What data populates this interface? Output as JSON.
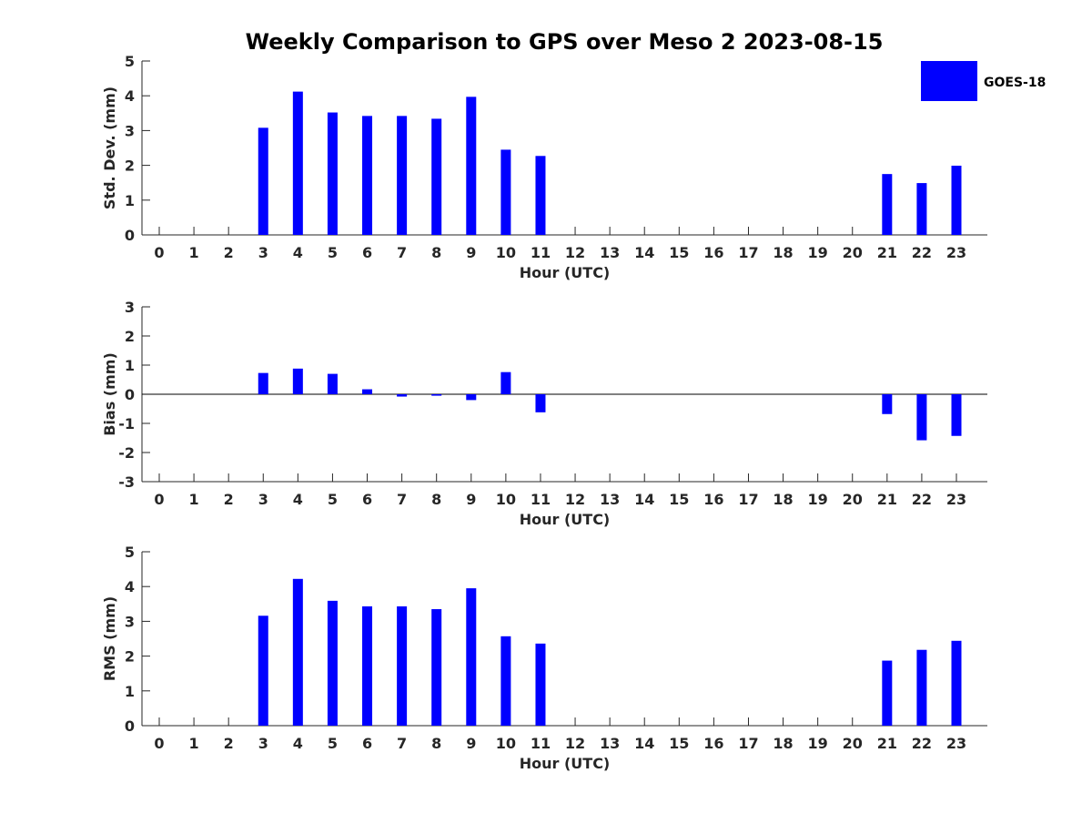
{
  "title": "Weekly Comparison to GPS over Meso 2 2023-08-15",
  "legend": {
    "label": "GOES-18",
    "color": "#0000ff",
    "placement": "top-right"
  },
  "chart_data": [
    {
      "type": "bar",
      "title": "Weekly Comparison to GPS over Meso 2 2023-08-15",
      "xlabel": "Hour (UTC)",
      "ylabel": "Std. Dev. (mm)",
      "ylim": [
        0,
        5
      ],
      "yticks": [
        "0",
        "1",
        "2",
        "3",
        "4",
        "5"
      ],
      "categories": [
        "0",
        "1",
        "2",
        "3",
        "4",
        "5",
        "6",
        "7",
        "8",
        "9",
        "10",
        "11",
        "12",
        "13",
        "14",
        "15",
        "16",
        "17",
        "18",
        "19",
        "20",
        "21",
        "22",
        "23"
      ],
      "series": [
        {
          "name": "GOES-18",
          "values": [
            null,
            null,
            null,
            3.08,
            4.12,
            3.52,
            3.42,
            3.42,
            3.34,
            3.97,
            2.45,
            2.27,
            null,
            null,
            null,
            null,
            null,
            null,
            null,
            null,
            null,
            1.75,
            1.49,
            1.99
          ]
        }
      ]
    },
    {
      "type": "bar",
      "xlabel": "Hour (UTC)",
      "ylabel": "Bias (mm)",
      "ylim": [
        -3,
        3
      ],
      "yticks": [
        "-3",
        "-2",
        "-1",
        "0",
        "1",
        "2",
        "3"
      ],
      "zero_line": true,
      "categories": [
        "0",
        "1",
        "2",
        "3",
        "4",
        "5",
        "6",
        "7",
        "8",
        "9",
        "10",
        "11",
        "12",
        "13",
        "14",
        "15",
        "16",
        "17",
        "18",
        "19",
        "20",
        "21",
        "22",
        "23"
      ],
      "series": [
        {
          "name": "GOES-18",
          "values": [
            null,
            null,
            null,
            0.73,
            0.88,
            0.7,
            0.17,
            -0.08,
            -0.05,
            -0.2,
            0.76,
            -0.62,
            null,
            null,
            null,
            null,
            null,
            null,
            null,
            null,
            null,
            -0.68,
            -1.58,
            -1.43
          ]
        }
      ]
    },
    {
      "type": "bar",
      "xlabel": "Hour (UTC)",
      "ylabel": "RMS (mm)",
      "ylim": [
        0,
        5
      ],
      "yticks": [
        "0",
        "1",
        "2",
        "3",
        "4",
        "5"
      ],
      "categories": [
        "0",
        "1",
        "2",
        "3",
        "4",
        "5",
        "6",
        "7",
        "8",
        "9",
        "10",
        "11",
        "12",
        "13",
        "14",
        "15",
        "16",
        "17",
        "18",
        "19",
        "20",
        "21",
        "22",
        "23"
      ],
      "series": [
        {
          "name": "GOES-18",
          "values": [
            null,
            null,
            null,
            3.16,
            4.22,
            3.59,
            3.43,
            3.43,
            3.35,
            3.95,
            2.57,
            2.36,
            null,
            null,
            null,
            null,
            null,
            null,
            null,
            null,
            null,
            1.87,
            2.18,
            2.44
          ]
        }
      ]
    }
  ]
}
